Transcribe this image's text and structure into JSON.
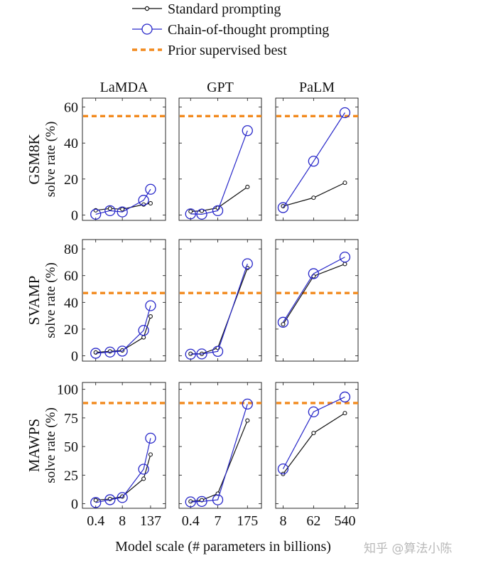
{
  "legend": [
    {
      "label": "Standard prompting",
      "style": "standard"
    },
    {
      "label": "Chain-of-thought prompting",
      "style": "cot"
    },
    {
      "label": "Prior supervised best",
      "style": "prior"
    }
  ],
  "colors": {
    "standard": "#111111",
    "cot": "#2727c9",
    "prior": "#f28a1e",
    "frame": "#111111"
  },
  "xlabel": "Model scale (# parameters in billions)",
  "watermark": "知乎 @算法小陈",
  "columns": [
    {
      "name": "LaMDA",
      "ticks": [
        "0.4",
        "8",
        "137"
      ]
    },
    {
      "name": "GPT",
      "ticks": [
        "0.4",
        "7",
        "175"
      ]
    },
    {
      "name": "PaLM",
      "ticks": [
        "8",
        "62",
        "540"
      ]
    }
  ],
  "rows": [
    {
      "name": "GSM8K",
      "ylabel": "solve rate (%)",
      "ylim": [
        -3,
        65
      ],
      "yticks": [
        0,
        20,
        40,
        60
      ]
    },
    {
      "name": "SVAMP",
      "ylabel": "solve rate (%)",
      "ylim": [
        -4,
        87
      ],
      "yticks": [
        0,
        20,
        40,
        60,
        80
      ]
    },
    {
      "name": "MAWPS",
      "ylabel": "solve rate (%)",
      "ylim": [
        -4,
        106
      ],
      "yticks": [
        0,
        25,
        50,
        75,
        100
      ]
    }
  ],
  "chart_data": {
    "type": "line",
    "title": "",
    "xlabel": "Model scale (# parameters in billions)",
    "panels": [
      {
        "row": "GSM8K",
        "model": "LaMDA",
        "x": [
          0.4,
          2,
          8,
          68,
          137
        ],
        "xscale": "log",
        "series": [
          {
            "name": "Standard prompting",
            "values": [
              2.6,
              3.6,
              3.2,
              5.8,
              6.5
            ]
          },
          {
            "name": "Chain-of-thought prompting",
            "values": [
              0.4,
              2.4,
              1.7,
              8.2,
              14.3
            ]
          }
        ],
        "prior_best": 55
      },
      {
        "row": "GSM8K",
        "model": "GPT",
        "x": [
          0.4,
          1.3,
          7,
          175
        ],
        "xscale": "log",
        "series": [
          {
            "name": "Standard prompting",
            "values": [
              2.0,
              2.3,
              4.0,
              15.6
            ]
          },
          {
            "name": "Chain-of-thought prompting",
            "values": [
              0.6,
              0.4,
              2.4,
              46.9
            ]
          }
        ],
        "prior_best": 55
      },
      {
        "row": "GSM8K",
        "model": "PaLM",
        "x": [
          8,
          62,
          540
        ],
        "xscale": "log",
        "series": [
          {
            "name": "Standard prompting",
            "values": [
              4.9,
              9.6,
              17.9
            ]
          },
          {
            "name": "Chain-of-thought prompting",
            "values": [
              4.1,
              29.9,
              56.9
            ]
          }
        ],
        "prior_best": 55
      },
      {
        "row": "SVAMP",
        "model": "LaMDA",
        "x": [
          0.4,
          2,
          8,
          68,
          137
        ],
        "xscale": "log",
        "series": [
          {
            "name": "Standard prompting",
            "values": [
              2.5,
              3.3,
              4.0,
              13.8,
              29.5
            ]
          },
          {
            "name": "Chain-of-thought prompting",
            "values": [
              1.9,
              2.8,
              3.5,
              19.0,
              37.5
            ]
          }
        ],
        "prior_best": 47
      },
      {
        "row": "SVAMP",
        "model": "GPT",
        "x": [
          0.4,
          1.3,
          7,
          175
        ],
        "xscale": "log",
        "series": [
          {
            "name": "Standard prompting",
            "values": [
              1.5,
              1.5,
              5.9,
              65.7
            ]
          },
          {
            "name": "Chain-of-thought prompting",
            "values": [
              1.2,
              1.4,
              3.3,
              68.9
            ]
          }
        ],
        "prior_best": 47
      },
      {
        "row": "SVAMP",
        "model": "PaLM",
        "x": [
          8,
          62,
          540
        ],
        "xscale": "log",
        "series": [
          {
            "name": "Standard prompting",
            "values": [
              23.6,
              59.6,
              68.7
            ]
          },
          {
            "name": "Chain-of-thought prompting",
            "values": [
              25.1,
              61.5,
              73.9
            ]
          }
        ],
        "prior_best": 47
      },
      {
        "row": "MAWPS",
        "model": "LaMDA",
        "x": [
          0.4,
          2,
          8,
          68,
          137
        ],
        "xscale": "log",
        "series": [
          {
            "name": "Standard prompting",
            "values": [
              3.1,
              4.1,
              6.3,
              21.8,
              43.0
            ]
          },
          {
            "name": "Chain-of-thought prompting",
            "values": [
              1.0,
              3.5,
              5.4,
              30.2,
              57.3
            ]
          }
        ],
        "prior_best": 88
      },
      {
        "row": "MAWPS",
        "model": "GPT",
        "x": [
          0.4,
          1.3,
          7,
          175
        ],
        "xscale": "log",
        "series": [
          {
            "name": "Standard prompting",
            "values": [
              2.0,
              3.1,
              8.8,
              72.7
            ]
          },
          {
            "name": "Chain-of-thought prompting",
            "values": [
              1.6,
              2.0,
              3.4,
              87.1
            ]
          }
        ],
        "prior_best": 88
      },
      {
        "row": "MAWPS",
        "model": "PaLM",
        "x": [
          8,
          62,
          540
        ],
        "xscale": "log",
        "series": [
          {
            "name": "Standard prompting",
            "values": [
              26.0,
              61.8,
              79.2
            ]
          },
          {
            "name": "Chain-of-thought prompting",
            "values": [
              30.4,
              80.3,
              93.3
            ]
          }
        ],
        "prior_best": 88
      }
    ]
  }
}
